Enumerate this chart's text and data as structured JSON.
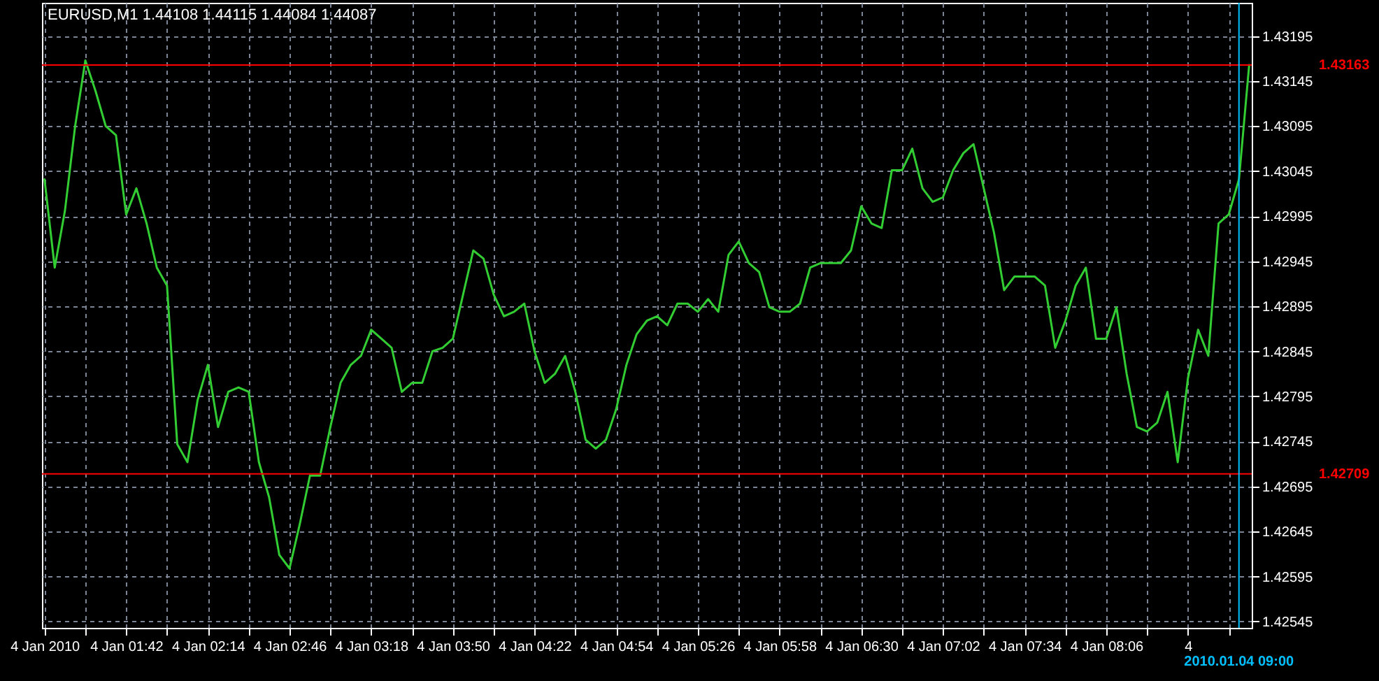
{
  "chart_data": {
    "type": "line",
    "title": "EURUSD,M1  1.44108 1.44115 1.44084 1.44087",
    "categories": [
      "4 Jan 2010",
      null,
      null,
      null,
      null,
      null,
      null,
      null,
      "4 Jan 01:42",
      null,
      null,
      null,
      null,
      null,
      null,
      null,
      "4 Jan 02:14",
      null,
      null,
      null,
      null,
      null,
      null,
      null,
      "4 Jan 02:46",
      null,
      null,
      null,
      null,
      null,
      null,
      null,
      "4 Jan 03:18",
      null,
      null,
      null,
      null,
      null,
      null,
      null,
      "4 Jan 03:50",
      null,
      null,
      null,
      null,
      null,
      null,
      null,
      "4 Jan 04:22",
      null,
      null,
      null,
      null,
      null,
      null,
      null,
      "4 Jan 04:54",
      null,
      null,
      null,
      null,
      null,
      null,
      null,
      "4 Jan 05:26",
      null,
      null,
      null,
      null,
      null,
      null,
      null,
      "4 Jan 05:58",
      null,
      null,
      null,
      null,
      null,
      null,
      null,
      "4 Jan 06:30",
      null,
      null,
      null,
      null,
      null,
      null,
      null,
      "4 Jan 07:02",
      null,
      null,
      null,
      null,
      null,
      null,
      null,
      "4 Jan 07:34",
      null,
      null,
      null,
      null,
      null,
      null,
      null,
      "4 Jan 08:06",
      null,
      null,
      null,
      null,
      null,
      null,
      null,
      "4",
      null,
      null,
      null,
      null,
      "2010.01.04 09:00",
      null
    ],
    "series": [
      {
        "color": "#32cd32",
        "values": [
          1.43036,
          1.42938,
          1.43001,
          1.43095,
          1.43168,
          1.43134,
          1.43095,
          1.43085,
          1.42997,
          1.43026,
          1.42987,
          1.42938,
          1.42918,
          1.42742,
          1.42722,
          1.42791,
          1.4283,
          1.42761,
          1.428,
          1.42805,
          1.428,
          1.42722,
          1.42683,
          1.42619,
          1.42604,
          1.42653,
          1.42707,
          1.42707,
          1.42761,
          1.4281,
          1.4283,
          1.4284,
          1.42869,
          1.42859,
          1.42849,
          1.428,
          1.4281,
          1.4281,
          1.42845,
          1.42849,
          1.42859,
          1.42908,
          1.42957,
          1.42948,
          1.42908,
          1.42884,
          1.42889,
          1.42898,
          1.42845,
          1.4281,
          1.4282,
          1.4284,
          1.428,
          1.42747,
          1.42737,
          1.42747,
          1.42781,
          1.4283,
          1.42864,
          1.42879,
          1.42884,
          1.42874,
          1.42898,
          1.42898,
          1.42889,
          1.42903,
          1.42889,
          1.42952,
          1.42967,
          1.42943,
          1.42933,
          1.42894,
          1.42889,
          1.42889,
          1.42898,
          1.42938,
          1.42943,
          1.42943,
          1.42943,
          1.42957,
          1.43006,
          1.42987,
          1.42982,
          1.43046,
          1.43046,
          1.4307,
          1.43026,
          1.43011,
          1.43016,
          1.43046,
          1.43065,
          1.43075,
          1.43026,
          1.42977,
          1.42913,
          1.42928,
          1.42928,
          1.42928,
          1.42918,
          1.42849,
          1.42879,
          1.42918,
          1.42938,
          1.42859,
          1.42859,
          1.42894,
          1.4282,
          1.42761,
          1.42756,
          1.42766,
          1.428,
          1.42722,
          1.42815,
          1.42869,
          1.4284,
          1.42987,
          1.42997,
          1.43036,
          1.43163
        ]
      }
    ],
    "ylim": [
      1.42538,
      1.43232
    ],
    "yticks": [
      1.42545,
      1.42595,
      1.42645,
      1.42695,
      1.42745,
      1.42795,
      1.42845,
      1.42895,
      1.42945,
      1.42995,
      1.43045,
      1.43095,
      1.43145,
      1.43195
    ],
    "grid": true,
    "ref_lines": [
      {
        "axis": "y",
        "value": 1.43163,
        "label": "1.43163",
        "color": "#ff0000"
      },
      {
        "axis": "y",
        "value": 1.42709,
        "label": "1.42709",
        "color": "#ff0000"
      },
      {
        "axis": "x",
        "value": "2010.01.04 09:00",
        "label": "2010.01.04 09:00",
        "color": "#00bfff"
      }
    ]
  }
}
